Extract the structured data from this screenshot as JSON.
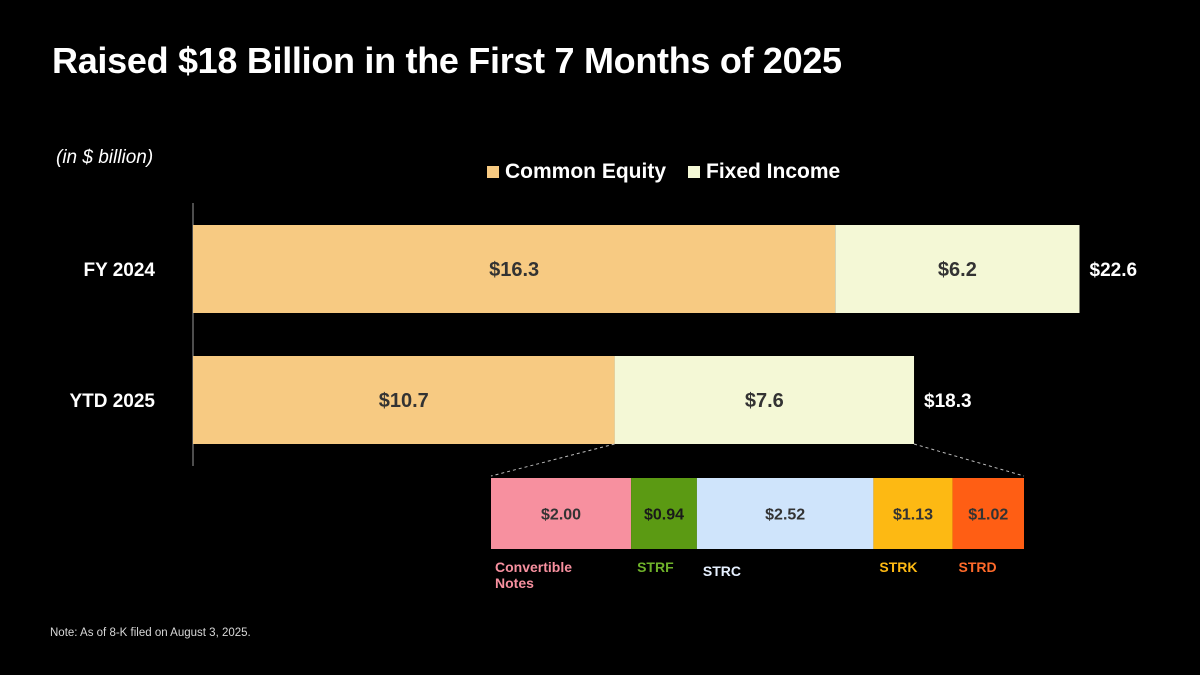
{
  "title": "Raised $18 Billion in the First 7 Months of 2025",
  "units_label": "(in $ billion)",
  "note": "Note: As of 8-K filed on August 3, 2025.",
  "colors": {
    "background": "#000000",
    "common_equity": "#F7CA82",
    "fixed_income": "#F4F8D6",
    "convertible_notes": "#F7909F",
    "strf": "#5B9A13",
    "strc": "#CFE4FB",
    "strk": "#FDB913",
    "strd": "#FF5E14"
  },
  "chart_data": [
    {
      "type": "bar",
      "orientation": "horizontal",
      "stacked": true,
      "categories": [
        "FY 2024",
        "YTD 2025"
      ],
      "series": [
        {
          "name": "Common Equity",
          "values": [
            16.3,
            10.7
          ],
          "labels": [
            "$16.3",
            "$10.7"
          ],
          "color": "#F7CA82"
        },
        {
          "name": "Fixed Income",
          "values": [
            6.2,
            7.6
          ],
          "labels": [
            "$6.2",
            "$7.6"
          ],
          "color": "#F4F8D6"
        }
      ],
      "totals": [
        22.6,
        18.3
      ],
      "total_labels": [
        "$22.6",
        "$18.3"
      ],
      "legend": "top-center",
      "grid": false
    },
    {
      "type": "bar",
      "orientation": "horizontal",
      "stacked": true,
      "breakdown_of": "YTD 2025 Fixed Income",
      "segments": [
        {
          "name": "Convertible Notes",
          "legend_lines": [
            "Convertible",
            "Notes"
          ],
          "value": 2.0,
          "label": "$2.00",
          "color": "#F7909F",
          "label_color": "#F7909F",
          "text_color": "#333333"
        },
        {
          "name": "STRF",
          "legend_lines": [
            "STRF"
          ],
          "value": 0.94,
          "label": "$0.94",
          "color": "#5B9A13",
          "label_color": "#6FB22A",
          "text_color": "#1a1a1a"
        },
        {
          "name": "STRC",
          "legend_lines": [
            "STRC"
          ],
          "value": 2.52,
          "label": "$2.52",
          "color": "#CFE4FB",
          "label_color": "#E6F0FF",
          "text_color": "#333333"
        },
        {
          "name": "STRK",
          "legend_lines": [
            "STRK"
          ],
          "value": 1.13,
          "label": "$1.13",
          "color": "#FDB913",
          "label_color": "#FDB913",
          "text_color": "#333333"
        },
        {
          "name": "STRD",
          "legend_lines": [
            "STRD"
          ],
          "value": 1.02,
          "label": "$1.02",
          "color": "#FF5E14",
          "label_color": "#FF6A2A",
          "text_color": "#333333"
        }
      ]
    }
  ]
}
